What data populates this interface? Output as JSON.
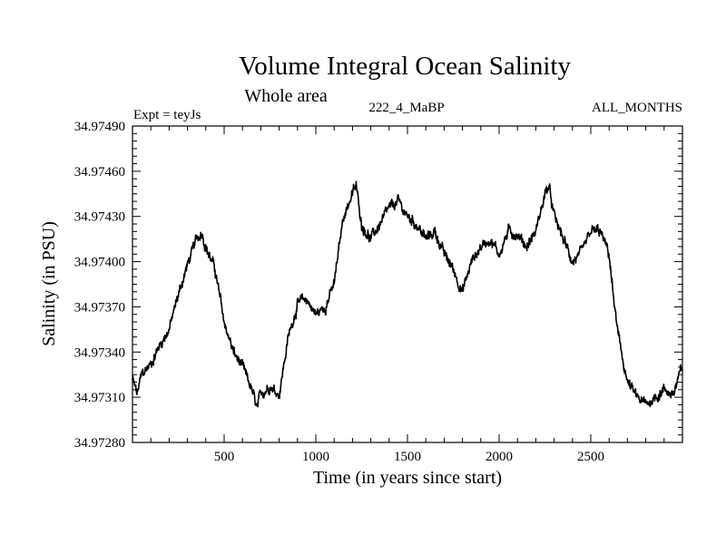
{
  "chart_data": {
    "type": "line",
    "title": "Volume Integral Ocean Salinity",
    "subtitle": "Whole area",
    "header_left": "Expt = teyJs",
    "header_center": "222_4_MaBP",
    "header_right": "ALL_MONTHS",
    "xlabel": "Time (in years since start)",
    "ylabel": "Salinity (in PSU)",
    "xlim": [
      0,
      3000
    ],
    "ylim": [
      34.9728,
      34.9749
    ],
    "x_ticks": [
      500,
      1000,
      1500,
      2000,
      2500
    ],
    "y_ticks": [
      "34.97280",
      "34.97310",
      "34.97340",
      "34.97370",
      "34.97400",
      "34.97430",
      "34.97460",
      "34.97490"
    ],
    "series": [
      {
        "name": "salinity",
        "color": "#000000",
        "x": [
          0,
          25,
          50,
          100,
          150,
          200,
          250,
          300,
          350,
          380,
          400,
          450,
          500,
          550,
          600,
          650,
          680,
          700,
          750,
          800,
          850,
          900,
          950,
          1000,
          1050,
          1100,
          1150,
          1200,
          1220,
          1250,
          1300,
          1350,
          1400,
          1450,
          1500,
          1550,
          1600,
          1650,
          1700,
          1750,
          1800,
          1850,
          1900,
          1950,
          2000,
          2050,
          2100,
          2150,
          2200,
          2250,
          2270,
          2300,
          2350,
          2400,
          2450,
          2500,
          2550,
          2600,
          2620,
          2650,
          2700,
          2750,
          2800,
          2850,
          2900,
          2950,
          3000
        ],
        "y": [
          34.97322,
          34.97312,
          34.97325,
          34.97332,
          34.97345,
          34.97355,
          34.97378,
          34.97398,
          34.97415,
          34.9742,
          34.9741,
          34.97395,
          34.9736,
          34.9734,
          34.9733,
          34.97315,
          34.97302,
          34.97312,
          34.97318,
          34.97312,
          34.9735,
          34.97372,
          34.97375,
          34.97365,
          34.9737,
          34.97385,
          34.9743,
          34.97445,
          34.9745,
          34.97425,
          34.97415,
          34.97425,
          34.97435,
          34.9744,
          34.9743,
          34.97425,
          34.97415,
          34.9742,
          34.97405,
          34.97395,
          34.9738,
          34.974,
          34.9741,
          34.97415,
          34.97405,
          34.9742,
          34.97418,
          34.9741,
          34.9742,
          34.97445,
          34.9745,
          34.9743,
          34.97415,
          34.974,
          34.97405,
          34.9742,
          34.9742,
          34.97405,
          34.9738,
          34.9735,
          34.9732,
          34.9731,
          34.97305,
          34.9731,
          34.97315,
          34.97312,
          34.9733
        ]
      }
    ]
  }
}
